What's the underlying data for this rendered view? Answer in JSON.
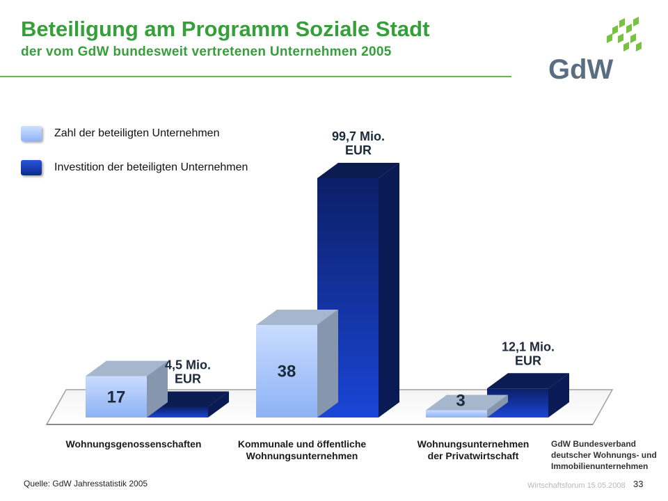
{
  "header": {
    "title": "Beteiligung am Programm Soziale Stadt",
    "subtitle": "der vom GdW bundesweit vertretenen Unternehmen 2005",
    "logo_text": "GdW"
  },
  "colors": {
    "title_green": "#35a03a",
    "light_bar": "#a9c8ff",
    "dark_bar": "#1233a8",
    "logo_gray": "#5a6e82"
  },
  "legend": [
    {
      "label": "Zahl der beteiligten Unternehmen",
      "color": "#a9c8ff"
    },
    {
      "label": "Investition der beteiligten Unternehmen",
      "color": "#1233a8"
    }
  ],
  "chart_data": {
    "type": "bar",
    "categories": [
      "Wohnungsgenossenschaften",
      "Kommunale und öffentliche Wohnungsunternehmen",
      "Wohnungsunternehmen der Privatwirtschaft"
    ],
    "category_lines": [
      [
        "Wohnungsgenossenschaften"
      ],
      [
        "Kommunale und öffentliche",
        "Wohnungsunternehmen"
      ],
      [
        "Wohnungsunternehmen",
        "der Privatwirtschaft"
      ]
    ],
    "series": [
      {
        "name": "Zahl der beteiligten Unternehmen",
        "values": [
          17,
          38,
          3
        ],
        "labels": [
          "17",
          "38",
          "3"
        ]
      },
      {
        "name": "Investition der beteiligten Unternehmen",
        "values": [
          4.5,
          99.7,
          12.1
        ],
        "labels": [
          "4,5 Mio. EUR",
          "99,7 Mio. EUR",
          "12,1 Mio. EUR"
        ],
        "label_lines": [
          [
            "4,5 Mio.",
            "EUR"
          ],
          [
            "99,7 Mio.",
            "EUR"
          ],
          [
            "12,1 Mio.",
            "EUR"
          ]
        ]
      }
    ],
    "style": "3d-bar",
    "legend_position": "top-left",
    "grid": false,
    "title": "",
    "xlabel": "",
    "ylabel": ""
  },
  "organization": {
    "lines": [
      "GdW Bundesverband",
      "deutscher Wohnungs- und",
      "Immobilienunternehmen"
    ]
  },
  "footer": {
    "source": "Quelle:  GdW Jahresstatistik 2005",
    "event": "Wirtschaftsforum 15.05.2008",
    "page": "33"
  }
}
